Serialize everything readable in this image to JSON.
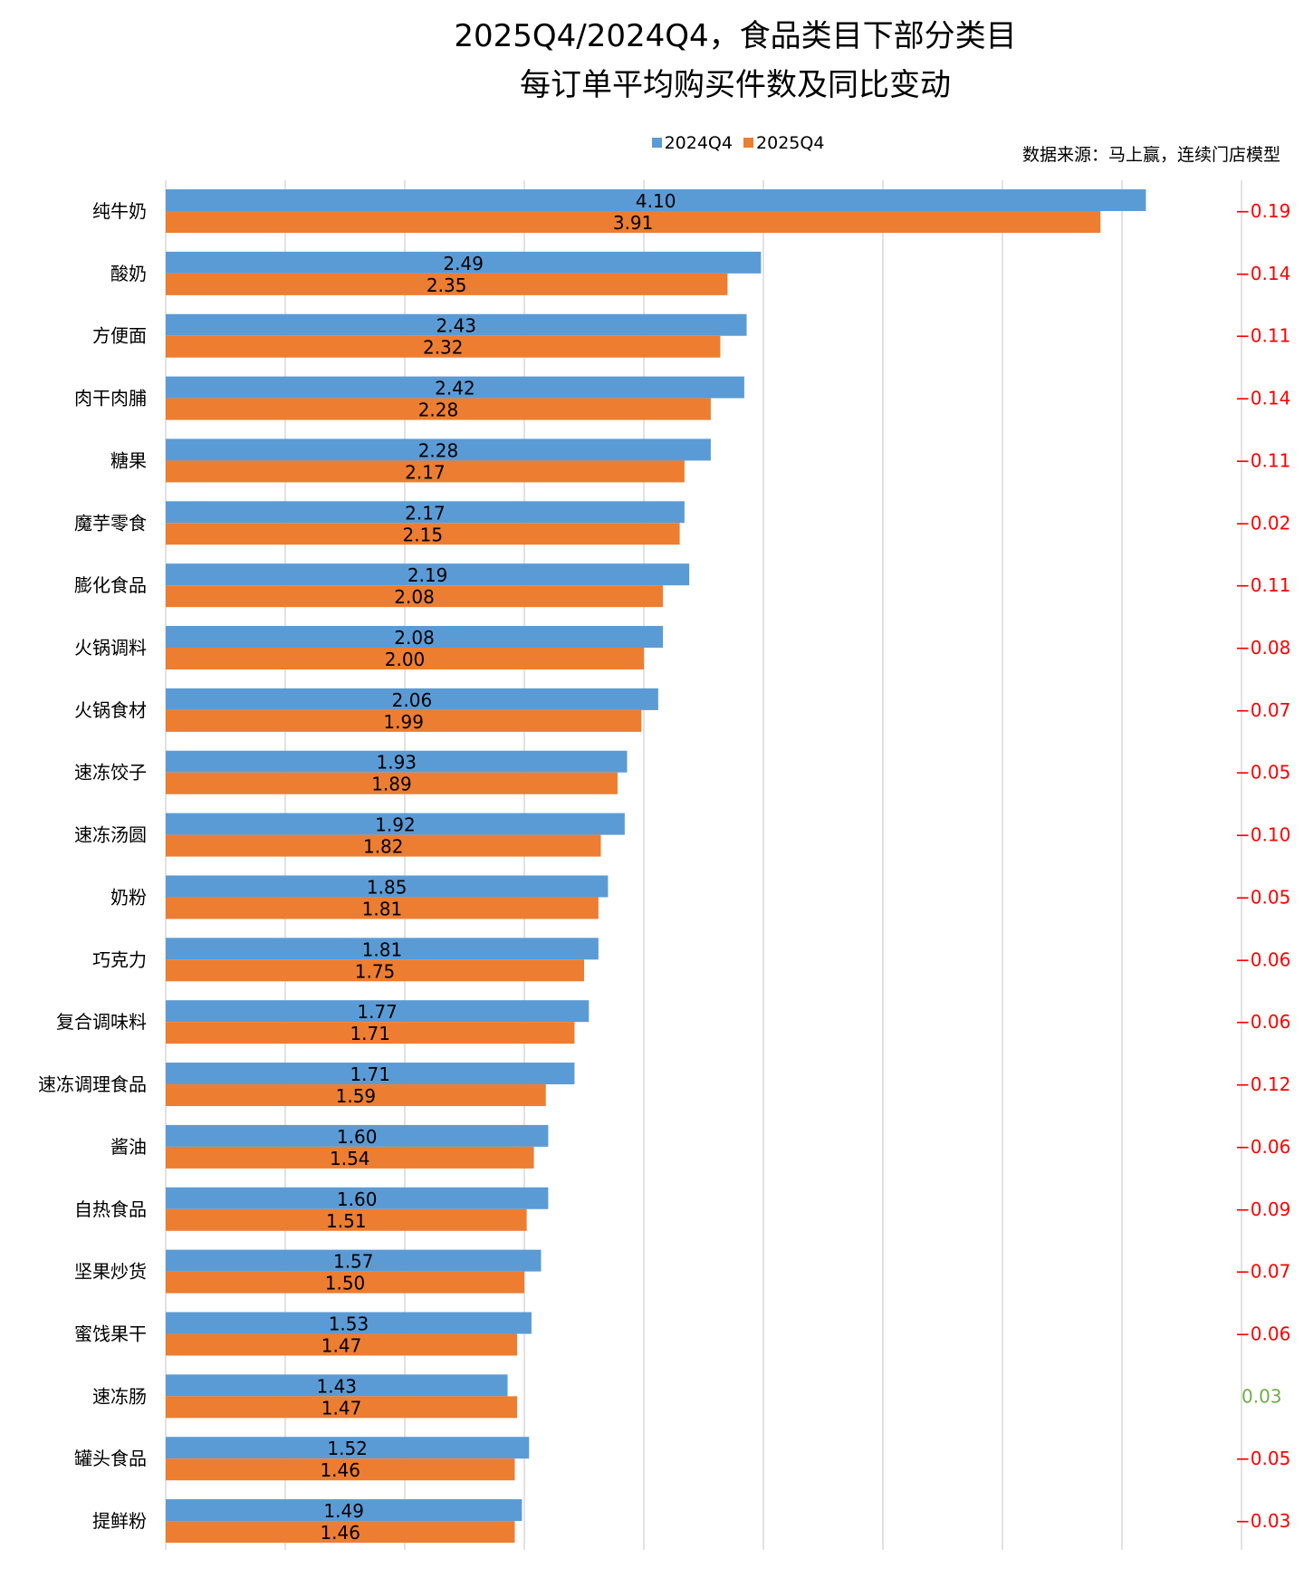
{
  "chart_data": {
    "type": "bar",
    "orientation": "horizontal",
    "title_line1": "2025Q4/2024Q4，食品类目下部分类目",
    "title_line2": "每订单平均购买件数及同比变动",
    "source": "数据来源：马上赢，连续门店模型",
    "categories": [
      "纯牛奶",
      "酸奶",
      "方便面",
      "肉干肉脯",
      "糖果",
      "魔芋零食",
      "膨化食品",
      "火锅调料",
      "火锅食材",
      "速冻饺子",
      "速冻汤圆",
      "奶粉",
      "巧克力",
      "复合调味料",
      "速冻调理食品",
      "酱油",
      "自热食品",
      "坚果炒货",
      "蜜饯果干",
      "速冻肠",
      "罐头食品",
      "提鲜粉"
    ],
    "series": [
      {
        "name": "2024Q4",
        "color": "#5b9bd5",
        "values": [
          4.1,
          2.49,
          2.43,
          2.42,
          2.28,
          2.17,
          2.19,
          2.08,
          2.06,
          1.93,
          1.92,
          1.85,
          1.81,
          1.77,
          1.71,
          1.6,
          1.6,
          1.57,
          1.53,
          1.43,
          1.52,
          1.49
        ]
      },
      {
        "name": "2025Q4",
        "color": "#ed7d31",
        "values": [
          3.91,
          2.35,
          2.32,
          2.28,
          2.17,
          2.15,
          2.08,
          2.0,
          1.99,
          1.89,
          1.82,
          1.81,
          1.75,
          1.71,
          1.59,
          1.54,
          1.51,
          1.5,
          1.47,
          1.47,
          1.46,
          1.46
        ]
      }
    ],
    "changes": [
      "-0.19",
      "-0.14",
      "-0.11",
      "-0.14",
      "-0.11",
      "-0.02",
      "-0.11",
      "-0.08",
      "-0.07",
      "-0.05",
      "-0.10",
      "-0.05",
      "-0.06",
      "-0.06",
      "-0.12",
      "-0.06",
      "-0.09",
      "-0.07",
      "-0.06",
      "0.03",
      "-0.05",
      "-0.03"
    ],
    "change_colors": {
      "negative": "#ff0000",
      "positive": "#70ad47"
    },
    "xlim": [
      0,
      4.5
    ],
    "grid_step": 0.5,
    "grid": true,
    "legend_position": "top"
  }
}
